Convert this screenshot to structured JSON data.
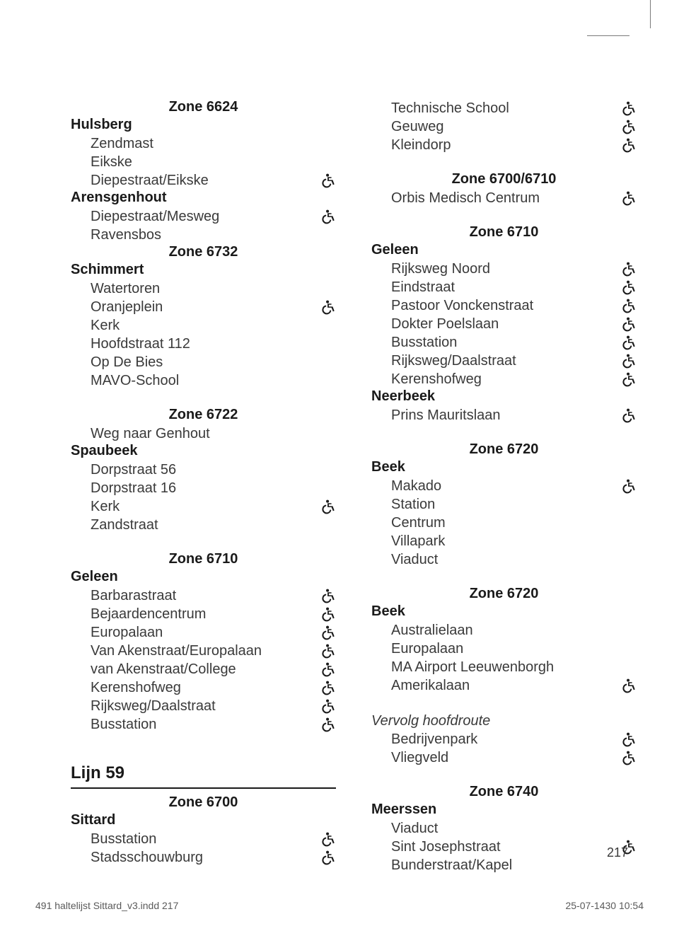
{
  "page_number": "217",
  "footer_left": "491 haltelijst Sittard_v3.indd   217",
  "footer_right": "25-07-1430   10:54",
  "icon_color": "#1a1a1a",
  "columns": [
    [
      {
        "type": "zone",
        "text": "Zone 6624"
      },
      {
        "type": "locality",
        "text": "Hulsberg"
      },
      {
        "type": "stop",
        "text": "Zendmast",
        "icons": 0
      },
      {
        "type": "stop",
        "text": "Eikske",
        "icons": 0
      },
      {
        "type": "stop",
        "text": "Diepestraat/Eikske",
        "icons": 1
      },
      {
        "type": "locality",
        "text": "Arensgenhout"
      },
      {
        "type": "stop",
        "text": "Diepestraat/Mesweg",
        "icons": 1
      },
      {
        "type": "stop",
        "text": "Ravensbos",
        "icons": 0
      },
      {
        "type": "zone",
        "text": "Zone 6732"
      },
      {
        "type": "locality",
        "text": "Schimmert"
      },
      {
        "type": "stop",
        "text": "Watertoren",
        "icons": 0
      },
      {
        "type": "stop",
        "text": "Oranjeplein",
        "icons": 1
      },
      {
        "type": "stop",
        "text": "Kerk",
        "icons": 0
      },
      {
        "type": "stop",
        "text": "Hoofdstraat 112",
        "icons": 0
      },
      {
        "type": "stop",
        "text": "Op De Bies",
        "icons": 0
      },
      {
        "type": "stop",
        "text": "MAVO-School",
        "icons": 0
      },
      {
        "type": "spacer"
      },
      {
        "type": "zone",
        "text": "Zone 6722"
      },
      {
        "type": "stop",
        "text": "Weg naar Genhout",
        "icons": 0
      },
      {
        "type": "locality",
        "text": "Spaubeek"
      },
      {
        "type": "stop",
        "text": "Dorpstraat 56",
        "icons": 0
      },
      {
        "type": "stop",
        "text": "Dorpstraat 16",
        "icons": 0
      },
      {
        "type": "stop",
        "text": "Kerk",
        "icons": 1
      },
      {
        "type": "stop",
        "text": "Zandstraat",
        "icons": 0
      },
      {
        "type": "spacer"
      },
      {
        "type": "zone",
        "text": "Zone 6710"
      },
      {
        "type": "locality",
        "text": "Geleen"
      },
      {
        "type": "stop",
        "text": "Barbarastraat",
        "icons": 1
      },
      {
        "type": "stop",
        "text": "Bejaardencentrum",
        "icons": 1
      },
      {
        "type": "stop",
        "text": "Europalaan",
        "icons": 1
      },
      {
        "type": "stop",
        "text": "Van Akenstraat/Europalaan",
        "icons": 1
      },
      {
        "type": "stop",
        "text": "van Akenstraat/College",
        "icons": 1
      },
      {
        "type": "stop",
        "text": "Kerenshofweg",
        "icons": 1
      },
      {
        "type": "stop",
        "text": "Rijksweg/Daalstraat",
        "icons": 1
      },
      {
        "type": "stop",
        "text": "Busstation",
        "icons": 1
      },
      {
        "type": "spacer"
      },
      {
        "type": "line",
        "text": "Lijn 59"
      },
      {
        "type": "rule"
      },
      {
        "type": "zone",
        "text": "Zone 6700"
      },
      {
        "type": "locality",
        "text": "Sittard"
      },
      {
        "type": "stop",
        "text": "Busstation",
        "icons": 1
      },
      {
        "type": "stop",
        "text": "Stadsschouwburg",
        "icons": 1
      }
    ],
    [
      {
        "type": "stop",
        "text": "Technische School",
        "icons": 1
      },
      {
        "type": "stop",
        "text": "Geuweg",
        "icons": 1
      },
      {
        "type": "stop",
        "text": "Kleindorp",
        "icons": 1
      },
      {
        "type": "spacer"
      },
      {
        "type": "zone",
        "text": "Zone 6700/6710"
      },
      {
        "type": "stop",
        "text": "Orbis Medisch Centrum",
        "icons": 1
      },
      {
        "type": "spacer"
      },
      {
        "type": "zone",
        "text": "Zone 6710"
      },
      {
        "type": "locality",
        "text": "Geleen"
      },
      {
        "type": "stop",
        "text": "Rijksweg Noord",
        "icons": 1
      },
      {
        "type": "stop",
        "text": "Eindstraat",
        "icons": 1
      },
      {
        "type": "stop",
        "text": "Pastoor Vonckenstraat",
        "icons": 1
      },
      {
        "type": "stop",
        "text": "Dokter Poelslaan",
        "icons": 1
      },
      {
        "type": "stop",
        "text": "Busstation",
        "icons": 1
      },
      {
        "type": "stop",
        "text": "Rijksweg/Daalstraat",
        "icons": 1
      },
      {
        "type": "stop",
        "text": "Kerenshofweg",
        "icons": 1
      },
      {
        "type": "locality",
        "text": "Neerbeek"
      },
      {
        "type": "stop",
        "text": "Prins Mauritslaan",
        "icons": 1
      },
      {
        "type": "spacer"
      },
      {
        "type": "zone",
        "text": "Zone 6720"
      },
      {
        "type": "locality",
        "text": "Beek"
      },
      {
        "type": "stop",
        "text": "Makado",
        "icons": 1
      },
      {
        "type": "stop",
        "text": "Station",
        "icons": 0
      },
      {
        "type": "stop",
        "text": "Centrum",
        "icons": 0
      },
      {
        "type": "stop",
        "text": "Villapark",
        "icons": 0
      },
      {
        "type": "stop",
        "text": "Viaduct",
        "icons": 0
      },
      {
        "type": "spacer"
      },
      {
        "type": "zone",
        "text": "Zone 6720"
      },
      {
        "type": "locality",
        "text": "Beek"
      },
      {
        "type": "stop",
        "text": "Australielaan",
        "icons": 0
      },
      {
        "type": "stop",
        "text": "Europalaan",
        "icons": 0
      },
      {
        "type": "stop",
        "text": "MA Airport Leeuwenborgh",
        "icons": 0
      },
      {
        "type": "stop",
        "text": "Amerikalaan",
        "icons": 1
      },
      {
        "type": "spacer"
      },
      {
        "type": "stop",
        "text": "Vervolg hoofdroute",
        "icons": 0,
        "italic": true,
        "noindent": true
      },
      {
        "type": "stop",
        "text": "Bedrijvenpark",
        "icons": 1
      },
      {
        "type": "stop",
        "text": "Vliegveld",
        "icons": 1
      },
      {
        "type": "spacer"
      },
      {
        "type": "zone",
        "text": "Zone 6740"
      },
      {
        "type": "locality",
        "text": "Meerssen"
      },
      {
        "type": "stop",
        "text": "Viaduct",
        "icons": 0
      },
      {
        "type": "stop",
        "text": "Sint Josephstraat",
        "icons": 1
      },
      {
        "type": "stop",
        "text": "Bunderstraat/Kapel",
        "icons": 0
      }
    ]
  ]
}
